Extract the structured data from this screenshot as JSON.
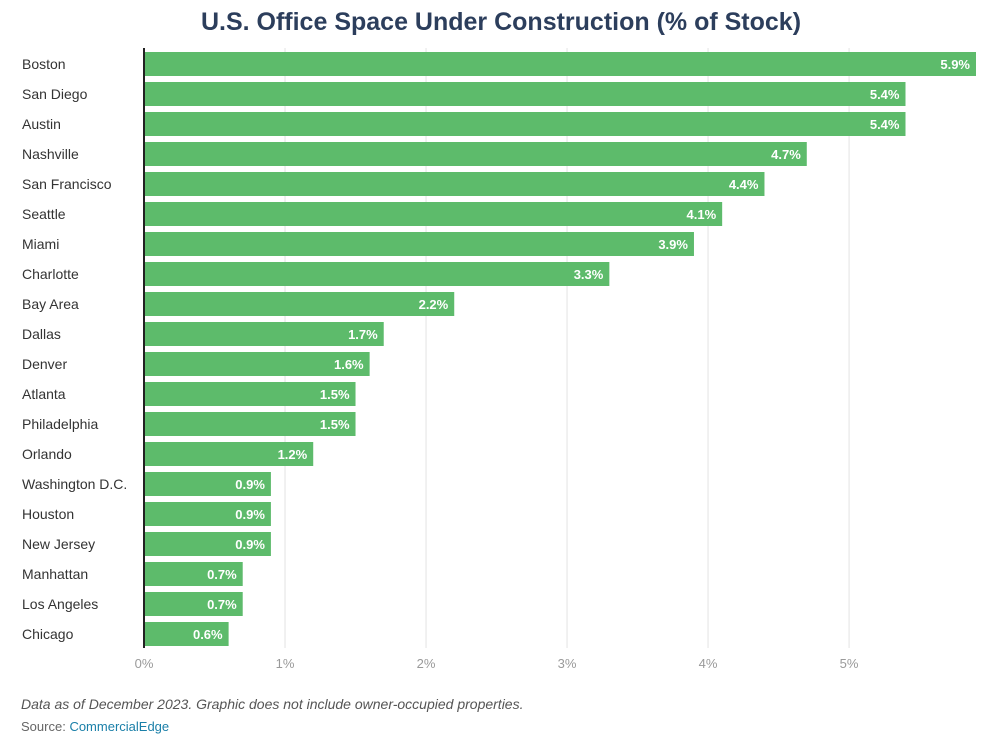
{
  "chart_data": {
    "type": "bar",
    "orientation": "horizontal",
    "title": "U.S. Office Space Under Construction (% of Stock)",
    "categories": [
      "Boston",
      "San Diego",
      "Austin",
      "Nashville",
      "San Francisco",
      "Seattle",
      "Miami",
      "Charlotte",
      "Bay Area",
      "Dallas",
      "Denver",
      "Atlanta",
      "Philadelphia",
      "Orlando",
      "Washington D.C.",
      "Houston",
      "New Jersey",
      "Manhattan",
      "Los Angeles",
      "Chicago"
    ],
    "values": [
      5.9,
      5.4,
      5.4,
      4.7,
      4.4,
      4.1,
      3.9,
      3.3,
      2.2,
      1.7,
      1.6,
      1.5,
      1.5,
      1.2,
      0.9,
      0.9,
      0.9,
      0.7,
      0.7,
      0.6
    ],
    "value_labels": [
      "5.9%",
      "5.4%",
      "5.4%",
      "4.7%",
      "4.4%",
      "4.1%",
      "3.9%",
      "3.3%",
      "2.2%",
      "1.7%",
      "1.6%",
      "1.5%",
      "1.5%",
      "1.2%",
      "0.9%",
      "0.9%",
      "0.9%",
      "0.7%",
      "0.7%",
      "0.6%"
    ],
    "xlim": [
      0,
      5.9
    ],
    "xticks": [
      0,
      1,
      2,
      3,
      4,
      5
    ],
    "xtick_labels": [
      "0%",
      "1%",
      "2%",
      "3%",
      "4%",
      "5%"
    ],
    "grid": true,
    "legend": "none",
    "bar_color": "#5dbb6b"
  },
  "footnote": "Data as of December 2023. Graphic does not include owner-occupied properties.",
  "source": {
    "label": "Source:",
    "name": "CommercialEdge",
    "link_color": "#1a7fa8"
  }
}
